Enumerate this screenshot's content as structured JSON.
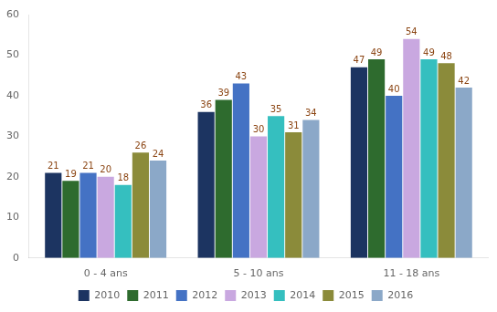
{
  "chart_data": {
    "type": "bar",
    "categories": [
      "0 - 4 ans",
      "5 - 10 ans",
      "11 - 18 ans"
    ],
    "series": [
      {
        "name": "2010",
        "color": "#1C3461",
        "values": [
          21,
          36,
          47
        ]
      },
      {
        "name": "2011",
        "color": "#2E6B2E",
        "values": [
          19,
          39,
          49
        ]
      },
      {
        "name": "2012",
        "color": "#4472C4",
        "values": [
          21,
          43,
          40
        ]
      },
      {
        "name": "2013",
        "color": "#C9A8E0",
        "values": [
          20,
          30,
          54
        ]
      },
      {
        "name": "2014",
        "color": "#35BFBF",
        "values": [
          18,
          35,
          49
        ]
      },
      {
        "name": "2015",
        "color": "#8B8B3A",
        "values": [
          26,
          31,
          48
        ]
      },
      {
        "name": "2016",
        "color": "#8BA8C8",
        "values": [
          24,
          34,
          42
        ]
      }
    ],
    "ylim": [
      0,
      60
    ],
    "yticks": [
      0,
      10,
      20,
      30,
      40,
      50,
      60
    ],
    "grid": false,
    "legend": "bottom",
    "data_labels": true
  }
}
